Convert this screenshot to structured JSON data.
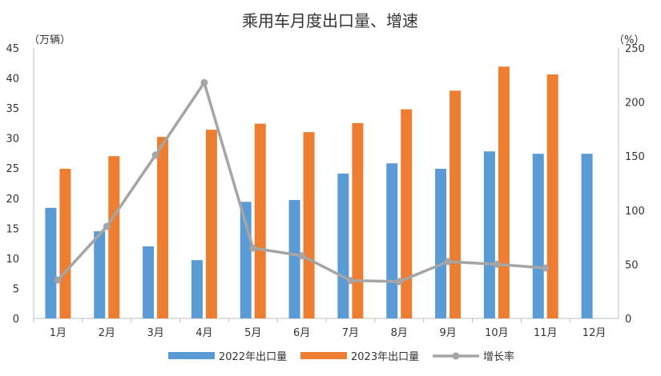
{
  "chart_data": {
    "type": "bar+line",
    "title": "乘用车月度出口量、增速",
    "left_unit": "（万辆）",
    "right_unit": "（%）",
    "categories": [
      "1月",
      "2月",
      "3月",
      "4月",
      "5月",
      "6月",
      "7月",
      "8月",
      "9月",
      "10月",
      "11月",
      "12月"
    ],
    "left_ylim": [
      0,
      45
    ],
    "left_ticks": [
      0,
      5,
      10,
      15,
      20,
      25,
      30,
      35,
      40,
      45
    ],
    "right_ylim": [
      0,
      250
    ],
    "right_ticks": [
      0,
      50,
      100,
      150,
      200,
      250
    ],
    "grid": false,
    "legend_position": "bottom",
    "series": [
      {
        "name": "2022年出口量",
        "type": "bar",
        "axis": "left",
        "color": "#5B9BD5",
        "values": [
          18.4,
          14.5,
          12.0,
          9.7,
          19.4,
          19.7,
          24.1,
          25.8,
          24.9,
          27.8,
          27.4,
          27.4
        ]
      },
      {
        "name": "2023年出口量",
        "type": "bar",
        "axis": "left",
        "color": "#ED7D31",
        "values": [
          24.9,
          27.0,
          30.2,
          31.4,
          32.4,
          31.0,
          32.5,
          34.8,
          37.9,
          41.9,
          40.6,
          null
        ]
      },
      {
        "name": "增长率",
        "type": "line",
        "axis": "right",
        "color": "#A5A5A5",
        "values": [
          35.5,
          85,
          151,
          218,
          65,
          58,
          35,
          34,
          52.5,
          50,
          46.6,
          null
        ]
      }
    ]
  }
}
